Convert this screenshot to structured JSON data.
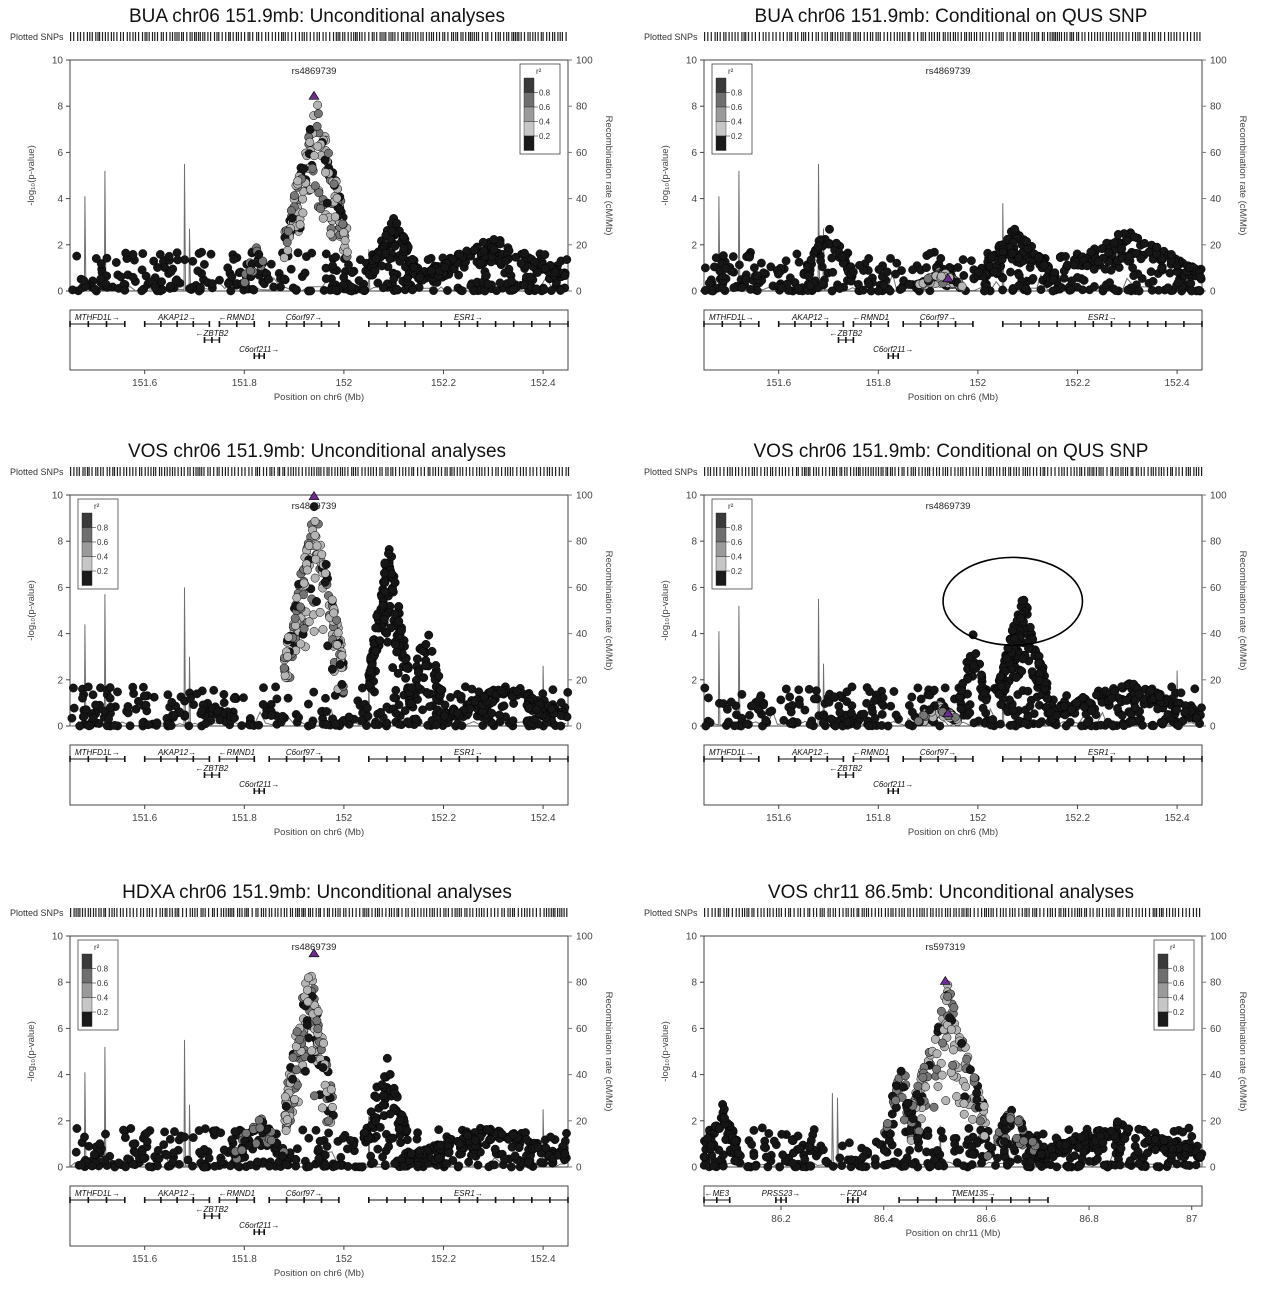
{
  "chart_data": [
    {
      "type": "scatter",
      "title": "BUA chr06 151.9mb: Unconditional analyses",
      "ylabel": "-log₁₀(p-value)",
      "y2label": "Recombination rate (cM/Mb)",
      "xlabel": "Position on chr6 (Mb)",
      "plotted_snps_label": "Plotted SNPs",
      "lead_snp": {
        "label": "rs4869739",
        "x": 151.94,
        "y": 8.3
      },
      "legend_title": "r²",
      "legend_position": "top-right",
      "legend_ticks": [
        "0.8",
        "0.6",
        "0.4",
        "0.2"
      ],
      "xlim": [
        151.45,
        152.45
      ],
      "ylim": [
        0,
        10
      ],
      "y2lim": [
        0,
        100
      ],
      "xticks": [
        "151.6",
        "151.8",
        "152",
        "152.2",
        "152.4"
      ],
      "yticks": [
        "0",
        "2",
        "4",
        "6",
        "8",
        "10"
      ],
      "y2ticks": [
        "0",
        "20",
        "40",
        "60",
        "80",
        "100"
      ],
      "peaks": [
        {
          "from": 151.88,
          "to": 152.01,
          "max": 8.3,
          "n": 160,
          "ld": "high"
        },
        {
          "from": 151.8,
          "to": 151.85,
          "max": 2.0,
          "n": 20,
          "ld": "mid"
        },
        {
          "from": 152.05,
          "to": 152.15,
          "max": 3.3,
          "n": 90,
          "ld": "low"
        },
        {
          "from": 152.15,
          "to": 152.45,
          "max": 2.4,
          "n": 120,
          "ld": "low"
        }
      ],
      "recomb_spikes": [
        {
          "x": 151.48,
          "y": 41
        },
        {
          "x": 151.52,
          "y": 52
        },
        {
          "x": 151.68,
          "y": 55
        },
        {
          "x": 151.69,
          "y": 27
        },
        {
          "x": 152.05,
          "y": 18
        }
      ],
      "genes": [
        {
          "name": "MTHFD1L→",
          "row": 0,
          "start": 151.45,
          "end": 151.56
        },
        {
          "name": "AKAP12→",
          "row": 0,
          "start": 151.6,
          "end": 151.73
        },
        {
          "name": "←RMND1",
          "row": 0,
          "start": 151.75,
          "end": 151.82
        },
        {
          "name": "C6orf97→",
          "row": 0,
          "start": 151.85,
          "end": 151.99
        },
        {
          "name": "ESR1→",
          "row": 0,
          "start": 152.05,
          "end": 152.45
        },
        {
          "name": "←ZBTB2",
          "row": 1,
          "start": 151.72,
          "end": 151.75
        },
        {
          "name": "C6orf211→",
          "row": 2,
          "start": 151.82,
          "end": 151.84
        }
      ]
    },
    {
      "type": "scatter",
      "title": "BUA chr06 151.9mb: Conditional on QUS SNP",
      "ylabel": "-log₁₀(p-value)",
      "y2label": "Recombination rate (cM/Mb)",
      "xlabel": "Position on chr6 (Mb)",
      "plotted_snps_label": "Plotted SNPs",
      "lead_snp": {
        "label": "rs4869739",
        "x": 151.94,
        "y": 0.4
      },
      "legend_title": "r²",
      "legend_position": "top-left",
      "legend_ticks": [
        "0.8",
        "0.6",
        "0.4",
        "0.2"
      ],
      "xlim": [
        151.45,
        152.45
      ],
      "ylim": [
        0,
        10
      ],
      "y2lim": [
        0,
        100
      ],
      "xticks": [
        "151.6",
        "151.8",
        "152",
        "152.2",
        "152.4"
      ],
      "yticks": [
        "0",
        "2",
        "4",
        "6",
        "8",
        "10"
      ],
      "y2ticks": [
        "0",
        "20",
        "40",
        "60",
        "80",
        "100"
      ],
      "peaks": [
        {
          "from": 151.88,
          "to": 151.97,
          "max": 0.9,
          "n": 70,
          "ld": "high"
        },
        {
          "from": 151.65,
          "to": 151.75,
          "max": 3.0,
          "n": 40,
          "ld": "low"
        },
        {
          "from": 152.0,
          "to": 152.15,
          "max": 2.8,
          "n": 90,
          "ld": "low"
        },
        {
          "from": 152.15,
          "to": 152.45,
          "max": 2.7,
          "n": 120,
          "ld": "low"
        }
      ],
      "recomb_spikes": [
        {
          "x": 151.48,
          "y": 41
        },
        {
          "x": 151.52,
          "y": 52
        },
        {
          "x": 151.68,
          "y": 55
        },
        {
          "x": 151.69,
          "y": 27
        },
        {
          "x": 152.05,
          "y": 38
        }
      ],
      "genes": [
        {
          "name": "MTHFD1L→",
          "row": 0,
          "start": 151.45,
          "end": 151.56
        },
        {
          "name": "AKAP12→",
          "row": 0,
          "start": 151.6,
          "end": 151.73
        },
        {
          "name": "←RMND1",
          "row": 0,
          "start": 151.75,
          "end": 151.82
        },
        {
          "name": "C6orf97→",
          "row": 0,
          "start": 151.85,
          "end": 151.99
        },
        {
          "name": "ESR1→",
          "row": 0,
          "start": 152.05,
          "end": 152.45
        },
        {
          "name": "←ZBTB2",
          "row": 1,
          "start": 151.72,
          "end": 151.75
        },
        {
          "name": "C6orf211→",
          "row": 2,
          "start": 151.82,
          "end": 151.84
        }
      ]
    },
    {
      "type": "scatter",
      "title": "VOS chr06 151.9mb: Unconditional analyses",
      "ylabel": "-log₁₀(p-value)",
      "y2label": "Recombination rate (cM/Mb)",
      "xlabel": "Position on chr6 (Mb)",
      "plotted_snps_label": "Plotted SNPs",
      "lead_snp": {
        "label": "rs4869739",
        "x": 151.94,
        "y": 9.8
      },
      "legend_title": "r²",
      "legend_position": "top-left",
      "legend_ticks": [
        "0.8",
        "0.6",
        "0.4",
        "0.2"
      ],
      "xlim": [
        151.45,
        152.45
      ],
      "ylim": [
        0,
        10
      ],
      "y2lim": [
        0,
        100
      ],
      "xticks": [
        "151.6",
        "151.8",
        "152",
        "152.2",
        "152.4"
      ],
      "yticks": [
        "0",
        "2",
        "4",
        "6",
        "8",
        "10"
      ],
      "y2ticks": [
        "0",
        "20",
        "40",
        "60",
        "80",
        "100"
      ],
      "peaks": [
        {
          "from": 151.88,
          "to": 152.0,
          "max": 9.8,
          "n": 170,
          "ld": "high"
        },
        {
          "from": 152.05,
          "to": 152.13,
          "max": 8.2,
          "n": 120,
          "ld": "low"
        },
        {
          "from": 152.13,
          "to": 152.2,
          "max": 4.5,
          "n": 40,
          "ld": "low"
        },
        {
          "from": 152.2,
          "to": 152.45,
          "max": 1.8,
          "n": 100,
          "ld": "low"
        }
      ],
      "recomb_spikes": [
        {
          "x": 151.48,
          "y": 44
        },
        {
          "x": 151.52,
          "y": 57
        },
        {
          "x": 151.68,
          "y": 60
        },
        {
          "x": 151.69,
          "y": 30
        },
        {
          "x": 152.05,
          "y": 20
        },
        {
          "x": 152.4,
          "y": 26
        }
      ],
      "genes": [
        {
          "name": "MTHFD1L→",
          "row": 0,
          "start": 151.45,
          "end": 151.56
        },
        {
          "name": "AKAP12→",
          "row": 0,
          "start": 151.6,
          "end": 151.73
        },
        {
          "name": "←RMND1",
          "row": 0,
          "start": 151.75,
          "end": 151.82
        },
        {
          "name": "C6orf97→",
          "row": 0,
          "start": 151.85,
          "end": 151.99
        },
        {
          "name": "ESR1→",
          "row": 0,
          "start": 152.05,
          "end": 152.45
        },
        {
          "name": "←ZBTB2",
          "row": 1,
          "start": 151.72,
          "end": 151.75
        },
        {
          "name": "C6orf211→",
          "row": 2,
          "start": 151.82,
          "end": 151.84
        }
      ]
    },
    {
      "type": "scatter",
      "title": "VOS chr06 151.9mb: Conditional on QUS SNP",
      "ylabel": "-log₁₀(p-value)",
      "y2label": "Recombination rate (cM/Mb)",
      "xlabel": "Position on chr6 (Mb)",
      "plotted_snps_label": "Plotted SNPs",
      "lead_snp": {
        "label": "rs4869739",
        "x": 151.94,
        "y": 0.4
      },
      "legend_title": "r²",
      "legend_position": "top-left",
      "legend_ticks": [
        "0.8",
        "0.6",
        "0.4",
        "0.2"
      ],
      "xlim": [
        151.45,
        152.45
      ],
      "ylim": [
        0,
        10
      ],
      "y2lim": [
        0,
        100
      ],
      "xticks": [
        "151.6",
        "151.8",
        "152",
        "152.2",
        "152.4"
      ],
      "yticks": [
        "0",
        "2",
        "4",
        "6",
        "8",
        "10"
      ],
      "y2ticks": [
        "0",
        "20",
        "40",
        "60",
        "80",
        "100"
      ],
      "peaks": [
        {
          "from": 151.88,
          "to": 151.96,
          "max": 1.0,
          "n": 70,
          "ld": "high"
        },
        {
          "from": 151.96,
          "to": 152.02,
          "max": 4.0,
          "n": 40,
          "ld": "low"
        },
        {
          "from": 152.04,
          "to": 152.14,
          "max": 5.9,
          "n": 130,
          "ld": "low"
        },
        {
          "from": 152.14,
          "to": 152.45,
          "max": 2.0,
          "n": 110,
          "ld": "low"
        }
      ],
      "annotation_ellipse": {
        "cx": 152.07,
        "cy": 5.4,
        "rx": 0.14,
        "ry": 1.9
      },
      "recomb_spikes": [
        {
          "x": 151.48,
          "y": 41
        },
        {
          "x": 151.52,
          "y": 52
        },
        {
          "x": 151.68,
          "y": 55
        },
        {
          "x": 151.69,
          "y": 27
        },
        {
          "x": 152.05,
          "y": 25
        },
        {
          "x": 152.4,
          "y": 24
        }
      ],
      "genes": [
        {
          "name": "MTHFD1L→",
          "row": 0,
          "start": 151.45,
          "end": 151.56
        },
        {
          "name": "AKAP12→",
          "row": 0,
          "start": 151.6,
          "end": 151.73
        },
        {
          "name": "←RMND1",
          "row": 0,
          "start": 151.75,
          "end": 151.82
        },
        {
          "name": "C6orf97→",
          "row": 0,
          "start": 151.85,
          "end": 151.99
        },
        {
          "name": "ESR1→",
          "row": 0,
          "start": 152.05,
          "end": 152.45
        },
        {
          "name": "←ZBTB2",
          "row": 1,
          "start": 151.72,
          "end": 151.75
        },
        {
          "name": "C6orf211→",
          "row": 2,
          "start": 151.82,
          "end": 151.84
        }
      ]
    },
    {
      "type": "scatter",
      "title": "HDXA chr06 151.9mb: Unconditional analyses",
      "ylabel": "-log₁₀(p-value)",
      "y2label": "Recombination rate (cM/Mb)",
      "xlabel": "Position on chr6 (Mb)",
      "plotted_snps_label": "Plotted SNPs",
      "lead_snp": {
        "label": "rs4869739",
        "x": 151.94,
        "y": 9.1
      },
      "legend_title": "r²",
      "legend_position": "top-left",
      "legend_ticks": [
        "0.8",
        "0.6",
        "0.4",
        "0.2"
      ],
      "xlim": [
        151.45,
        152.45
      ],
      "ylim": [
        0,
        10
      ],
      "y2lim": [
        0,
        100
      ],
      "xticks": [
        "151.6",
        "151.8",
        "152",
        "152.2",
        "152.4"
      ],
      "yticks": [
        "0",
        "2",
        "4",
        "6",
        "8",
        "10"
      ],
      "y2ticks": [
        "0",
        "20",
        "40",
        "60",
        "80",
        "100"
      ],
      "peaks": [
        {
          "from": 151.88,
          "to": 151.98,
          "max": 9.1,
          "n": 150,
          "ld": "high"
        },
        {
          "from": 151.78,
          "to": 151.88,
          "max": 2.4,
          "n": 40,
          "ld": "mid"
        },
        {
          "from": 152.04,
          "to": 152.13,
          "max": 4.9,
          "n": 70,
          "ld": "low"
        },
        {
          "from": 152.13,
          "to": 152.45,
          "max": 1.8,
          "n": 110,
          "ld": "low"
        }
      ],
      "recomb_spikes": [
        {
          "x": 151.48,
          "y": 41
        },
        {
          "x": 151.52,
          "y": 52
        },
        {
          "x": 151.68,
          "y": 55
        },
        {
          "x": 151.69,
          "y": 27
        },
        {
          "x": 152.05,
          "y": 22
        },
        {
          "x": 152.4,
          "y": 25
        }
      ],
      "genes": [
        {
          "name": "MTHFD1L→",
          "row": 0,
          "start": 151.45,
          "end": 151.56
        },
        {
          "name": "AKAP12→",
          "row": 0,
          "start": 151.6,
          "end": 151.73
        },
        {
          "name": "←RMND1",
          "row": 0,
          "start": 151.75,
          "end": 151.82
        },
        {
          "name": "C6orf97→",
          "row": 0,
          "start": 151.85,
          "end": 151.99
        },
        {
          "name": "ESR1→",
          "row": 0,
          "start": 152.05,
          "end": 152.45
        },
        {
          "name": "←ZBTB2",
          "row": 1,
          "start": 151.72,
          "end": 151.75
        },
        {
          "name": "C6orf211→",
          "row": 2,
          "start": 151.82,
          "end": 151.84
        }
      ]
    },
    {
      "type": "scatter",
      "title": "VOS chr11 86.5mb: Unconditional analyses",
      "ylabel": "-log₁₀(p-value)",
      "y2label": "Recombination rate (cM/Mb)",
      "xlabel": "Position on chr11 (Mb)",
      "plotted_snps_label": "Plotted SNPs",
      "lead_snp": {
        "label": "rs597319",
        "x": 86.52,
        "y": 7.9
      },
      "legend_title": "r²",
      "legend_position": "top-right",
      "legend_ticks": [
        "0.8",
        "0.6",
        "0.4",
        "0.2"
      ],
      "xlim": [
        86.05,
        87.02
      ],
      "ylim": [
        0,
        10
      ],
      "y2lim": [
        0,
        100
      ],
      "xticks": [
        "86.2",
        "86.4",
        "86.6",
        "86.8",
        "87"
      ],
      "yticks": [
        "0",
        "2",
        "4",
        "6",
        "8",
        "10"
      ],
      "y2ticks": [
        "0",
        "20",
        "40",
        "60",
        "80",
        "100"
      ],
      "peaks": [
        {
          "from": 86.45,
          "to": 86.6,
          "max": 7.9,
          "n": 150,
          "ld": "high"
        },
        {
          "from": 86.4,
          "to": 86.47,
          "max": 4.8,
          "n": 50,
          "ld": "mid"
        },
        {
          "from": 86.6,
          "to": 86.7,
          "max": 2.6,
          "n": 60,
          "ld": "mid"
        },
        {
          "from": 86.05,
          "to": 86.12,
          "max": 2.8,
          "n": 40,
          "ld": "low"
        },
        {
          "from": 86.7,
          "to": 87.02,
          "max": 2.0,
          "n": 140,
          "ld": "low"
        }
      ],
      "recomb_spikes": [
        {
          "x": 86.3,
          "y": 32
        },
        {
          "x": 86.31,
          "y": 30
        },
        {
          "x": 86.51,
          "y": 18
        }
      ],
      "genes": [
        {
          "name": "←ME3",
          "row": 0,
          "start": 86.05,
          "end": 86.1
        },
        {
          "name": "PRSS23→",
          "row": 0,
          "start": 86.19,
          "end": 86.21
        },
        {
          "name": "←FZD4",
          "row": 0,
          "start": 86.33,
          "end": 86.35
        },
        {
          "name": "TMEM135→",
          "row": 0,
          "start": 86.43,
          "end": 86.72
        }
      ]
    }
  ],
  "colors": {
    "point_low": "#161616",
    "point_mid": "#767676",
    "point_high": "#b4b4b4",
    "recomb_line": "#707070",
    "frame": "#444444"
  }
}
